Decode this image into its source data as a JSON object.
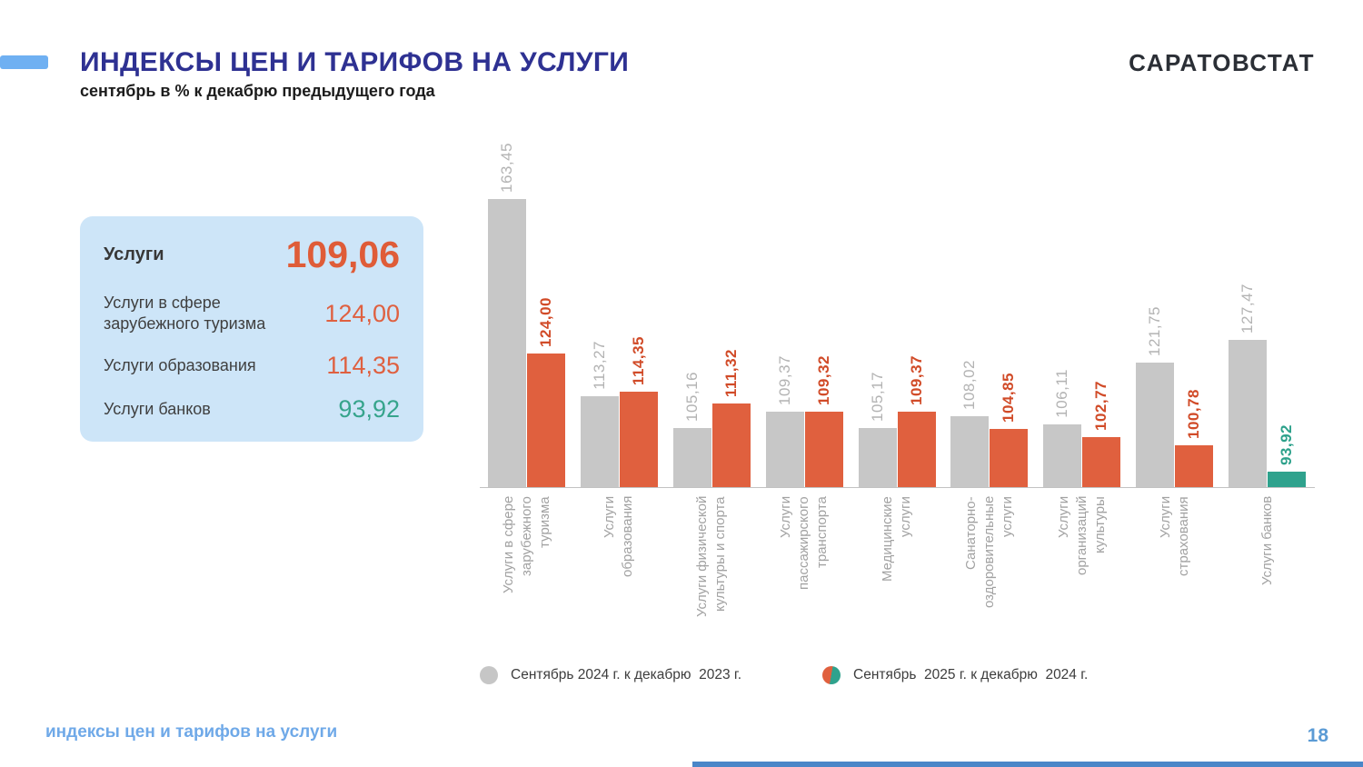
{
  "header": {
    "title": "ИНДЕКСЫ ЦЕН И ТАРИФОВ НА УСЛУГИ",
    "subtitle": "сентябрь в % к декабрю предыдущего года",
    "logo": "САРАТОВСТАТ"
  },
  "summary_card": {
    "rows": [
      {
        "label": "Услуги",
        "value": "109,06",
        "color": "#df5c38"
      },
      {
        "label": "Услуги в сфере зарубежного туризма",
        "value": "124,00",
        "color": "#df6040"
      },
      {
        "label": "Услуги образования",
        "value": "114,35",
        "color": "#df6040"
      },
      {
        "label": "Услуги банков",
        "value": "93,92",
        "color": "#36a48c"
      }
    ]
  },
  "chart_data": {
    "type": "bar",
    "title": "ИНДЕКСЫ ЦЕН И ТАРИФОВ НА УСЛУГИ",
    "subtitle": "сентябрь в % к декабрю предыдущего года",
    "categories": [
      "Услуги в сфере зарубежного туризма",
      "Услуги образования",
      "Услуги физической культуры и спорта",
      "Услуги пассажирского транспорта",
      "Медицинские услуги",
      "Санаторно-оздоровительные услуги",
      "Услуги организаций культуры",
      "Услуги страхования",
      "Услуги банков"
    ],
    "category_lines": [
      [
        "Услуги в сфере",
        "зарубежного",
        "туризма"
      ],
      [
        "Услуги",
        "образования"
      ],
      [
        "Услуги физической",
        "культуры и спорта"
      ],
      [
        "Услуги",
        "пассажирского",
        "транспорта"
      ],
      [
        "Медицинские",
        "услуги"
      ],
      [
        "Санаторно-",
        "оздоровительные",
        "услуги"
      ],
      [
        "Услуги",
        "организаций",
        "культуры"
      ],
      [
        "Услуги",
        "страхования"
      ],
      [
        "Услуги банков"
      ]
    ],
    "series": [
      {
        "name": "Сентябрь 2024 г. к декабрю  2023 г.",
        "color": "#c7c7c7",
        "label_color": "#b3b3b3",
        "values": [
          163.45,
          113.27,
          105.16,
          109.37,
          105.17,
          108.02,
          106.11,
          121.75,
          127.47
        ],
        "labels": [
          "163,45",
          "113,27",
          "105,16",
          "109,37",
          "105,17",
          "108,02",
          "106,11",
          "121,75",
          "127,47"
        ]
      },
      {
        "name": "Сентябрь  2025 г. к декабрю  2024 г.",
        "bar_colors": [
          "#e0603e",
          "#e0603e",
          "#e0603e",
          "#e0603e",
          "#e0603e",
          "#e0603e",
          "#e0603e",
          "#e0603e",
          "#2fa28d"
        ],
        "label_colors": [
          "#d14b28",
          "#d14b28",
          "#d14b28",
          "#d14b28",
          "#d14b28",
          "#d14b28",
          "#d14b28",
          "#d14b28",
          "#2da18b"
        ],
        "values": [
          124.0,
          114.35,
          111.32,
          109.32,
          109.37,
          104.85,
          102.77,
          100.78,
          93.92
        ],
        "labels": [
          "124,00",
          "114,35",
          "111,32",
          "109,32",
          "109,37",
          "104,85",
          "102,77",
          "100,78",
          "93,92"
        ]
      }
    ],
    "ylim": [
      90,
      170
    ],
    "grid": false,
    "axis_tick_labels_visible": false,
    "legend_position": "bottom",
    "value_labels_rotated": true
  },
  "legend": {
    "items": [
      {
        "label": "Сентябрь 2024 г. к декабрю  2023 г.",
        "marker_colors": [
          "#c6c6c6"
        ]
      },
      {
        "label": "Сентябрь  2025 г. к декабрю  2024 г.",
        "marker_colors": [
          "#e0603e",
          "#2fa28d"
        ]
      }
    ]
  },
  "footer": {
    "left_text": "индексы цен и тарифов на услуги",
    "page_number": "18"
  },
  "colors": {
    "accent_dash_blue": "#6fb0f2",
    "title_blue": "#2e3192",
    "logo_dark": "#2b2f36",
    "card_background": "#cde5f8",
    "bar_gray": "#c7c7c7",
    "bar_orange": "#e0603e",
    "bar_teal": "#2fa28d",
    "footer_blue": "#6fa9e8",
    "page_number_blue": "#5b9bd5",
    "bottom_bar_blue": "#4a86c8"
  }
}
